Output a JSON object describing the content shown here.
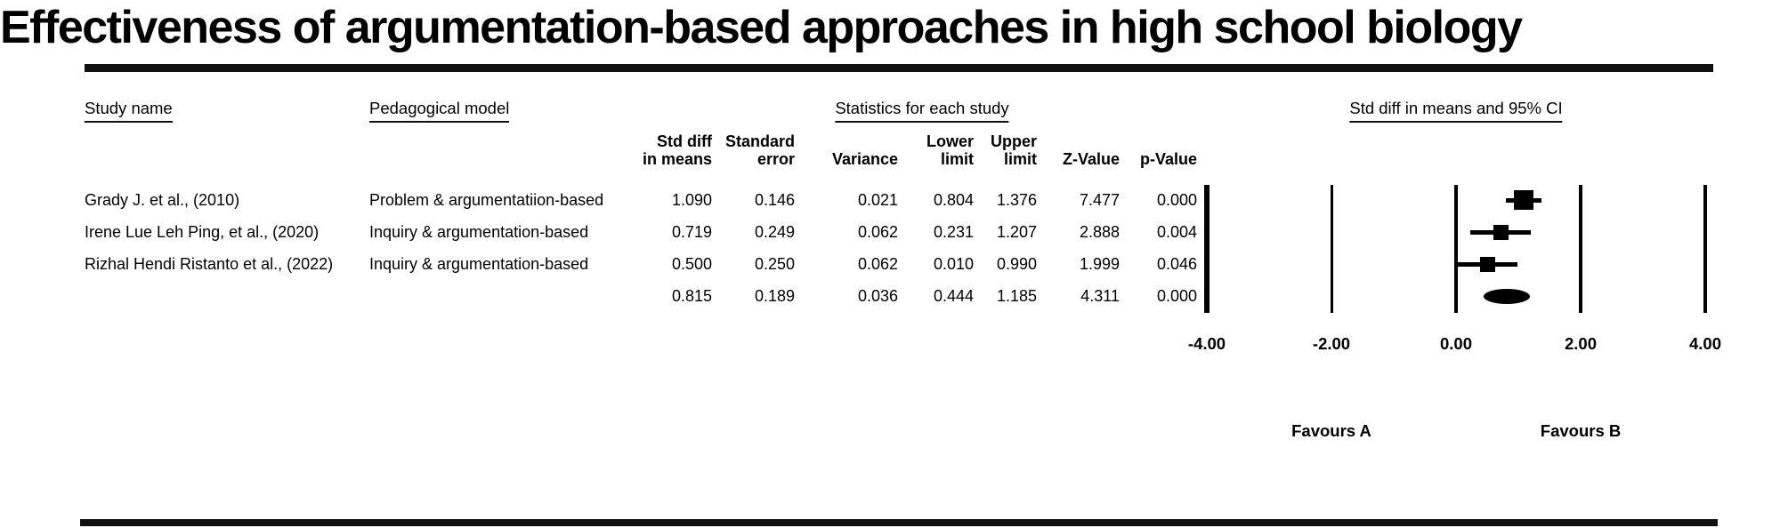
{
  "title": "Effectiveness of argumentation-based approaches in high school biology",
  "table": {
    "group_headers": {
      "study": "Study name",
      "model": "Pedagogical model",
      "stats": "Statistics for each study",
      "plot": "Std diff in means and 95% CI"
    },
    "column_headers": {
      "std_diff": {
        "line1": "Std diff",
        "line2": "in means"
      },
      "std_err": {
        "line1": "Standard",
        "line2": "error"
      },
      "variance": {
        "line1": "",
        "line2": "Variance"
      },
      "lower": {
        "line1": "Lower",
        "line2": "limit"
      },
      "upper": {
        "line1": "Upper",
        "line2": "limit"
      },
      "z": {
        "line1": "",
        "line2": "Z-Value"
      },
      "p": {
        "line1": "",
        "line2": "p-Value"
      }
    },
    "rows": [
      {
        "study": "Grady J. et al., (2010)",
        "model": "Problem & argumentatiion-based",
        "std_diff": "1.090",
        "std_err": "0.146",
        "variance": "0.021",
        "lower": "0.804",
        "upper": "1.376",
        "z": "7.477",
        "p": "0.000"
      },
      {
        "study": "Irene Lue Leh Ping, et al., (2020)",
        "model": "Inquiry & argumentation-based",
        "std_diff": "0.719",
        "std_err": "0.249",
        "variance": "0.062",
        "lower": "0.231",
        "upper": "1.207",
        "z": "2.888",
        "p": "0.004"
      },
      {
        "study": "Rizhal Hendi Ristanto et al., (2022)",
        "model": "Inquiry & argumentation-based",
        "std_diff": "0.500",
        "std_err": "0.250",
        "variance": "0.062",
        "lower": "0.010",
        "upper": "0.990",
        "z": "1.999",
        "p": "0.046"
      },
      {
        "study": "",
        "model": "",
        "std_diff": "0.815",
        "std_err": "0.189",
        "variance": "0.036",
        "lower": "0.444",
        "upper": "1.185",
        "z": "4.311",
        "p": "0.000"
      }
    ]
  },
  "chart_data": {
    "type": "forest",
    "title": "Effectiveness of argumentation-based approaches in high school biology",
    "x_axis": {
      "label": "Std diff in means and 95% CI",
      "xlim": [
        -4,
        4
      ],
      "ticks": [
        -4,
        -2,
        0,
        2,
        4
      ],
      "tick_labels": [
        "-4.00",
        "-2.00",
        "0.00",
        "2.00",
        "4.00"
      ]
    },
    "studies": [
      {
        "name": "Grady J. et al., (2010)",
        "estimate": 1.09,
        "lower": 0.804,
        "upper": 1.376,
        "variance": 0.021
      },
      {
        "name": "Irene Lue Leh Ping, et al., (2020)",
        "estimate": 0.719,
        "lower": 0.231,
        "upper": 1.207,
        "variance": 0.062
      },
      {
        "name": "Rizhal Hendi Ristanto et al., (2022)",
        "estimate": 0.5,
        "lower": 0.01,
        "upper": 0.99,
        "variance": 0.062
      }
    ],
    "summary": {
      "estimate": 0.815,
      "lower": 0.444,
      "upper": 1.185,
      "variance": 0.036
    },
    "annotations": {
      "left": "Favours A",
      "right": "Favours B"
    },
    "colors": {
      "foreground": "#000000",
      "background": "#ffffff"
    }
  }
}
